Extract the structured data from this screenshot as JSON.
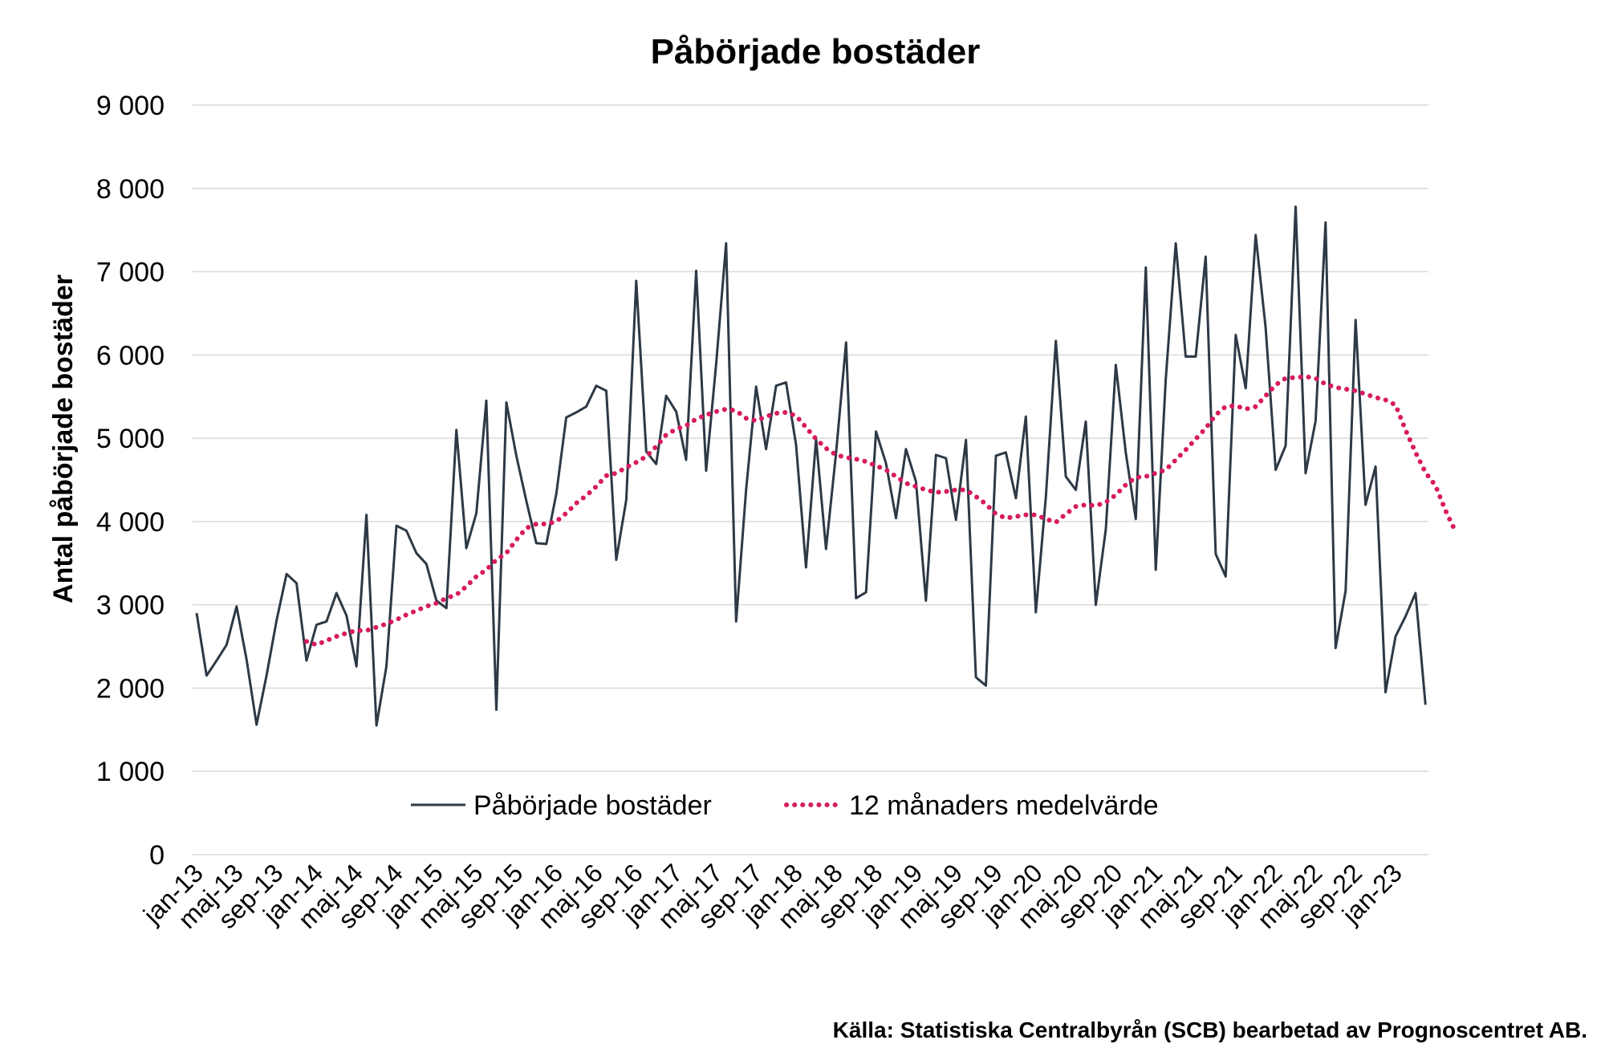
{
  "source_text": "Källa: Statistiska Centralbyrån (SCB) bearbetad av Prognoscentret AB.",
  "colors": {
    "series": "#2d3945",
    "average": "#d81b60",
    "grid": "#d9d9d9"
  },
  "chart_data": {
    "type": "line",
    "title": "Påbörjade bostäder",
    "ylabel": "Antal påbörjade bostäder",
    "xlabel": "",
    "ylim": [
      0,
      9000
    ],
    "yticks": [
      0,
      1000,
      2000,
      3000,
      4000,
      5000,
      6000,
      7000,
      8000,
      9000
    ],
    "ytick_labels": [
      "0",
      "1 000",
      "2 000",
      "3 000",
      "4 000",
      "5 000",
      "6 000",
      "7 000",
      "8 000",
      "9 000"
    ],
    "xtick_labels": [
      "jan-13",
      "maj-13",
      "sep-13",
      "jan-14",
      "maj-14",
      "sep-14",
      "jan-15",
      "maj-15",
      "sep-15",
      "jan-16",
      "maj-16",
      "sep-16",
      "jan-17",
      "maj-17",
      "sep-17",
      "jan-18",
      "maj-18",
      "sep-18",
      "jan-19",
      "maj-19",
      "sep-19",
      "jan-20",
      "maj-20",
      "sep-20",
      "jan-21",
      "maj-21",
      "sep-21",
      "jan-22",
      "maj-22",
      "sep-22",
      "jan-23"
    ],
    "xtick_every": 4,
    "grid": true,
    "legend_position": "bottom-center",
    "series": [
      {
        "name": "Påbörjade bostäder",
        "style": "solid",
        "values": [
          2900,
          2150,
          2330,
          2520,
          2980,
          2340,
          1560,
          2150,
          2810,
          3370,
          3260,
          2330,
          2760,
          2800,
          3140,
          2870,
          2260,
          4080,
          1550,
          2260,
          3950,
          3890,
          3620,
          3490,
          3050,
          2960,
          5100,
          3680,
          4100,
          5450,
          1740,
          5430,
          4790,
          4250,
          3740,
          3730,
          4330,
          5250,
          5310,
          5380,
          5630,
          5570,
          3540,
          4260,
          6890,
          4840,
          4690,
          5510,
          5320,
          4740,
          7010,
          4610,
          5890,
          7340,
          2800,
          4390,
          5620,
          4870,
          5630,
          5670,
          4920,
          3450,
          4990,
          3670,
          4820,
          6150,
          3080,
          3150,
          5080,
          4700,
          4040,
          4870,
          4480,
          3050,
          4800,
          4760,
          4020,
          4980,
          2130,
          2030,
          4790,
          4830,
          4280,
          5260,
          2910,
          4300,
          6170,
          4540,
          4380,
          5200,
          3000,
          3910,
          5880,
          4830,
          4030,
          7050,
          3420,
          5700,
          7340,
          5980,
          5980,
          7180,
          3610,
          3340,
          6240,
          5600,
          7440,
          6330,
          4620,
          4910,
          7780,
          4580,
          5210,
          7590,
          2480,
          3170,
          6420,
          4200,
          4660,
          1950,
          2620,
          2860,
          3140,
          1800
        ]
      },
      {
        "name": "12 månaders medelvärde",
        "style": "dotted",
        "start_index": 11,
        "values": [
          2560,
          2520,
          2570,
          2620,
          2660,
          2690,
          2690,
          2730,
          2770,
          2820,
          2880,
          2930,
          2980,
          3020,
          3080,
          3120,
          3220,
          3340,
          3420,
          3540,
          3620,
          3780,
          3920,
          3970,
          3970,
          4000,
          4100,
          4220,
          4310,
          4420,
          4550,
          4580,
          4650,
          4710,
          4780,
          4900,
          5040,
          5110,
          5150,
          5230,
          5280,
          5320,
          5350,
          5330,
          5240,
          5210,
          5260,
          5300,
          5310,
          5270,
          5130,
          4990,
          4880,
          4800,
          4770,
          4750,
          4720,
          4670,
          4620,
          4540,
          4460,
          4420,
          4380,
          4350,
          4360,
          4380,
          4380,
          4300,
          4210,
          4090,
          4040,
          4060,
          4080,
          4080,
          4030,
          3990,
          4090,
          4180,
          4200,
          4190,
          4230,
          4320,
          4440,
          4530,
          4540,
          4580,
          4620,
          4740,
          4860,
          4990,
          5120,
          5280,
          5380,
          5390,
          5350,
          5380,
          5510,
          5640,
          5720,
          5730,
          5740,
          5720,
          5650,
          5610,
          5590,
          5570,
          5530,
          5490,
          5460,
          5400,
          5100,
          4830,
          4590,
          4430,
          4130,
          3880
        ]
      }
    ]
  }
}
